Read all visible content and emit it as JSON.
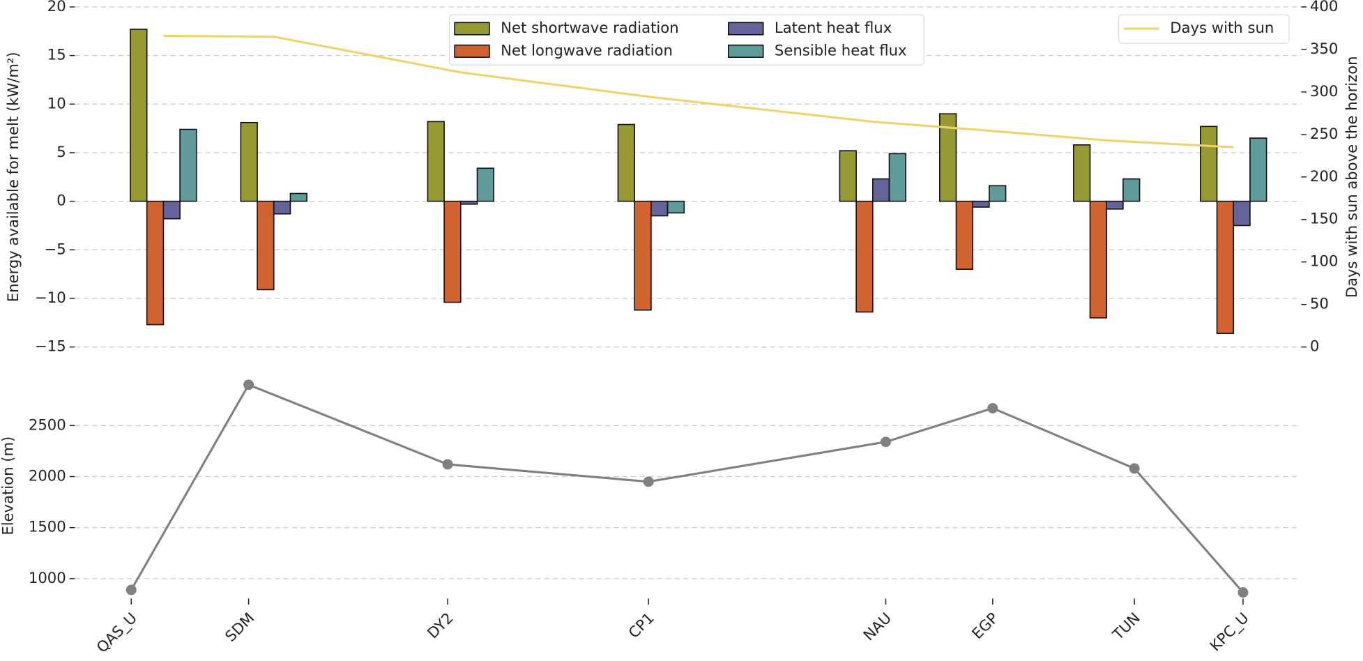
{
  "chart_data": [
    {
      "type": "bar",
      "y_label": "Energy available for melt (kW/m²)",
      "y2_label": "Days with sun above the horizon",
      "ylim": [
        -15,
        20
      ],
      "yticks": [
        {
          "value": -15,
          "label": "−15"
        },
        {
          "value": -10,
          "label": "−10"
        },
        {
          "value": -5,
          "label": "−5"
        },
        0,
        5,
        10,
        15,
        20
      ],
      "y2lim": [
        0,
        400
      ],
      "y2ticks": [
        0,
        50,
        100,
        150,
        200,
        250,
        300,
        350,
        400
      ],
      "grid": true,
      "legend": "upper center",
      "series": [
        {
          "name": "Net shortwave radiation",
          "color": "#979a33",
          "values": [
            17.7,
            8.1,
            8.2,
            7.9,
            5.2,
            9.0,
            5.8,
            7.7
          ]
        },
        {
          "name": "Net longwave radiation",
          "color": "#d0632f",
          "values": [
            -12.7,
            -9.1,
            -10.4,
            -11.2,
            -11.4,
            -7.0,
            -12.0,
            -13.6
          ]
        },
        {
          "name": "Latent heat flux",
          "color": "#65639b",
          "values": [
            -1.8,
            -1.3,
            -0.3,
            -1.5,
            2.3,
            -0.6,
            -0.8,
            -2.5
          ]
        },
        {
          "name": "Sensible heat flux",
          "color": "#5e9b99",
          "values": [
            7.4,
            0.8,
            3.4,
            -1.2,
            4.9,
            1.6,
            2.3,
            6.5
          ]
        },
        {
          "name": "Days with sun",
          "color": "#efd46e",
          "type": "line",
          "axis": "y2",
          "legend": "upper right",
          "values": [
            366,
            365,
            323,
            294,
            265,
            256,
            243,
            235
          ]
        }
      ]
    },
    {
      "type": "line",
      "y_label": "Elevation (m)",
      "categories": [
        "QAS_U",
        "SDM",
        "DY2",
        "CP1",
        "NAU",
        "EGP",
        "TUN",
        "KPC_U"
      ],
      "ylim": [
        720,
        3100
      ],
      "yticks": [
        1000,
        1500,
        2000,
        2500
      ],
      "grid": true,
      "series": [
        {
          "name": "Elevation",
          "color": "#808080",
          "values": [
            890,
            2900,
            2120,
            1950,
            2340,
            2670,
            2080,
            865
          ]
        }
      ]
    }
  ]
}
